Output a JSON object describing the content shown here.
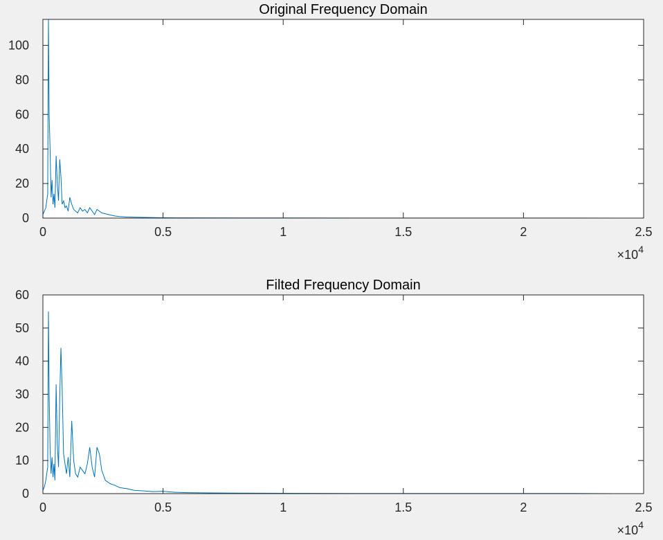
{
  "colors": {
    "series": "#0072bd",
    "axis": "#262626",
    "figure_bg": "#f0f0f0",
    "plot_bg": "#ffffff"
  },
  "chart_data": [
    {
      "type": "line",
      "title": "Original Frequency Domain",
      "xlabel": "",
      "ylabel": "",
      "xlim": [
        0,
        25000
      ],
      "ylim": [
        0,
        115
      ],
      "x_ticks": [
        0,
        0.5,
        1,
        1.5,
        2,
        2.5
      ],
      "x_tick_labels": [
        "0",
        "0.5",
        "1",
        "1.5",
        "2",
        "2.5"
      ],
      "x_exponent_base": "×10",
      "x_exponent_power": "4",
      "y_ticks": [
        0,
        20,
        40,
        60,
        80,
        100
      ],
      "y_tick_labels": [
        "0",
        "20",
        "40",
        "60",
        "80",
        "100"
      ],
      "grid": false,
      "series": [
        {
          "x": [
            0,
            60,
            120,
            160,
            200,
            230,
            260,
            300,
            340,
            380,
            420,
            460,
            500,
            550,
            600,
            650,
            700,
            750,
            800,
            860,
            920,
            980,
            1050,
            1120,
            1200,
            1280,
            1360,
            1450,
            1550,
            1650,
            1750,
            1850,
            1950,
            2050,
            2150,
            2250,
            2350,
            2450,
            2600,
            2800,
            3000,
            3200,
            3500,
            3800,
            4200,
            4600,
            5000,
            6000,
            8000,
            10000,
            14000,
            18000,
            22000,
            24000
          ],
          "y": [
            2,
            4,
            6,
            10,
            14,
            115,
            60,
            39,
            12,
            22,
            8,
            14,
            6,
            36,
            20,
            10,
            34,
            24,
            8,
            10,
            6,
            7,
            4,
            12,
            8,
            5,
            4,
            3,
            6,
            4,
            5,
            3,
            6,
            4,
            2,
            5,
            4,
            3,
            2.5,
            1.8,
            1.2,
            0.9,
            0.6,
            0.5,
            0.4,
            0.3,
            0.2,
            0.15,
            0.1,
            0.1,
            0.05,
            0.05,
            0.05,
            0
          ]
        }
      ]
    },
    {
      "type": "line",
      "title": "Filted Frequency Domain",
      "xlabel": "",
      "ylabel": "",
      "xlim": [
        0,
        25000
      ],
      "ylim": [
        0,
        60
      ],
      "x_ticks": [
        0,
        0.5,
        1,
        1.5,
        2,
        2.5
      ],
      "x_tick_labels": [
        "0",
        "0.5",
        "1",
        "1.5",
        "2",
        "2.5"
      ],
      "x_exponent_base": "×10",
      "x_exponent_power": "4",
      "y_ticks": [
        0,
        10,
        20,
        30,
        40,
        50,
        60
      ],
      "y_tick_labels": [
        "0",
        "10",
        "20",
        "30",
        "40",
        "50",
        "60"
      ],
      "grid": false,
      "series": [
        {
          "x": [
            0,
            60,
            120,
            160,
            200,
            230,
            260,
            300,
            340,
            380,
            420,
            460,
            500,
            550,
            600,
            650,
            700,
            750,
            800,
            860,
            920,
            980,
            1050,
            1120,
            1200,
            1280,
            1360,
            1450,
            1550,
            1650,
            1750,
            1850,
            1950,
            2050,
            2150,
            2250,
            2350,
            2450,
            2600,
            2800,
            3000,
            3200,
            3500,
            3800,
            4200,
            4600,
            5000,
            5500,
            6000,
            7000,
            8000,
            10000,
            14000,
            18000,
            22000,
            24000
          ],
          "y": [
            1,
            2,
            4,
            6,
            8,
            55,
            30,
            13,
            6,
            11,
            5,
            9,
            4,
            33,
            15,
            8,
            29,
            44,
            32,
            12,
            9,
            6,
            11,
            5,
            22,
            10,
            6,
            5,
            8,
            7,
            6,
            9,
            14,
            8,
            5,
            14,
            12,
            7,
            4,
            3,
            2.5,
            1.8,
            1.5,
            1,
            0.8,
            0.6,
            0.7,
            0.4,
            0.3,
            0.2,
            0.15,
            0.1,
            0.05,
            0.05,
            0.05,
            0
          ]
        }
      ]
    }
  ]
}
